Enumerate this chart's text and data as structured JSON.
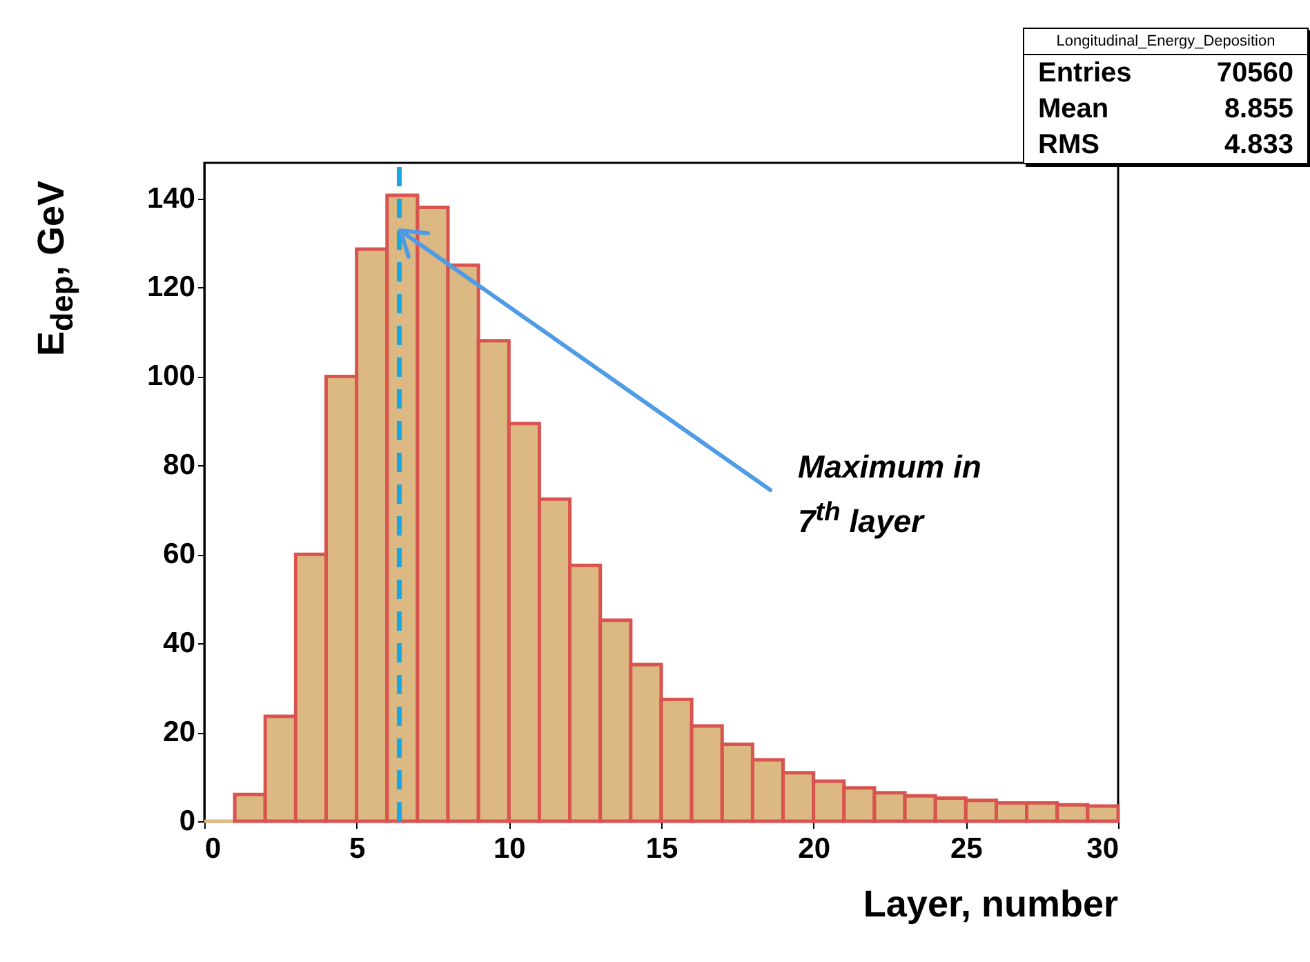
{
  "chart_data": {
    "type": "histogram",
    "title": "Longitudinal_Energy_Deposition",
    "xlabel": "Layer, number",
    "ylabel": "E$_{dep}$, GeV",
    "bins": [
      0,
      1,
      2,
      3,
      4,
      5,
      6,
      7,
      8,
      9,
      10,
      11,
      12,
      13,
      14,
      15,
      16,
      17,
      18,
      19,
      20,
      21,
      22,
      23,
      24,
      25,
      26,
      27,
      28,
      29,
      30
    ],
    "values": [
      0,
      6,
      23.6,
      60,
      100,
      128.6,
      140.7,
      138,
      125,
      108,
      89.4,
      72.4,
      57.5,
      45.2,
      35.2,
      27.4,
      21.4,
      17.3,
      13.8,
      10.9,
      9,
      7.5,
      6.4,
      5.7,
      5.2,
      4.7,
      4.1,
      4.1,
      3.7,
      3.4
    ],
    "color": "#dcb882",
    "xlim": [
      0,
      30
    ],
    "xticks": [
      0,
      5,
      10,
      15,
      20,
      25,
      30
    ],
    "ylim": [
      0,
      148
    ],
    "yticks": [
      0,
      20,
      40,
      60,
      80,
      100,
      120,
      140
    ],
    "grid": false,
    "ref_lines": [
      {
        "axis": "x",
        "value": 6.4,
        "color": "#1aa7e0",
        "line_style": "dashed"
      }
    ],
    "annotations": [
      "Maximum in 7$^{th}$ layer",
      "Entries 70560",
      "Mean 8.855",
      "RMS 4.833"
    ]
  }
}
